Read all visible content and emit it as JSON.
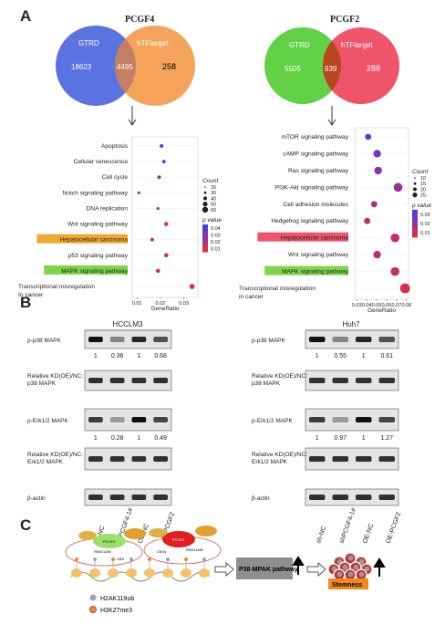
{
  "panels": {
    "a": "A",
    "b": "B",
    "c": "C"
  },
  "venn_left": {
    "title": "PCGF4",
    "left_label": "GTRD",
    "right_label": "hTFtarget",
    "left_value": "18623",
    "overlap_value": "4495",
    "right_value": "258",
    "left_color": "#5b73e0",
    "right_color": "#f5a35a",
    "overlap_color": "#c47e62"
  },
  "venn_right": {
    "title": "PCGF2",
    "left_label": "GTRD",
    "right_label": "hTFtarget",
    "left_value": "5505",
    "overlap_value": "939",
    "right_value": "288",
    "left_color": "#62d145",
    "right_color": "#f0546b",
    "overlap_color": "#b8461e"
  },
  "chart_data": [
    {
      "type": "scatter",
      "xlabel": "GeneRatio",
      "x_ticks": [
        "0.01",
        "0.02",
        "0.03"
      ],
      "categories": [
        "Apoptosis",
        "Cellular senescence",
        "Cell cycle",
        "Notch signaling pathway",
        "DNA replication",
        "Wnt signaling pathway",
        "Hepatocellular carcinoma",
        "p53 signaling pathway",
        "MAPK signaling pathway",
        "Transcriptional misregulation In cancer"
      ],
      "x": [
        0.0205,
        0.0215,
        0.0195,
        0.0108,
        0.019,
        0.0225,
        0.0165,
        0.0225,
        0.019,
        0.0335
      ],
      "count": [
        30,
        30,
        30,
        20,
        20,
        40,
        30,
        40,
        40,
        60
      ],
      "pvalue": [
        0.04,
        0.03,
        0.025,
        0.02,
        0.02,
        0.01,
        0.015,
        0.01,
        0.012,
        0.005
      ],
      "highlight": {
        "Hepatocellular carcinoma": "#f0a830",
        "MAPK signaling pathway": "#7bd64a"
      },
      "legend": {
        "count_title": "Count",
        "count_values": [
          "20",
          "30",
          "40",
          "50",
          "60"
        ],
        "p_title": "p value",
        "p_values": [
          "0.04",
          "0.03",
          "0.02",
          "0.01"
        ]
      }
    },
    {
      "type": "scatter",
      "xlabel": "GeneRatio",
      "x_ticks": [
        "0.03",
        "0.04",
        "0.05",
        "0.06",
        "0.07",
        "0.08"
      ],
      "categories": [
        "mTOR signaling pathway",
        "cAMP signaling pathway",
        "Ras signaling pathway",
        "PI3K-Akt signaling pathway",
        "Cell adhesion molecules",
        "Hedgehog signaling pathway",
        "Hepatocellular carcinoma",
        "Wnt signaling pathway",
        "MAPK signaling pathway",
        "Transcriptional misregulation in cancer"
      ],
      "x": [
        0.0415,
        0.0505,
        0.0515,
        0.0715,
        0.0475,
        0.0405,
        0.0685,
        0.0505,
        0.0685,
        0.0785
      ],
      "count": [
        10,
        15,
        15,
        20,
        10,
        10,
        20,
        15,
        20,
        25
      ],
      "pvalue": [
        0.03,
        0.025,
        0.022,
        0.02,
        0.015,
        0.012,
        0.01,
        0.012,
        0.01,
        0.005
      ],
      "highlight": {
        "Hepatocellular carcinoma": "#f0546b",
        "MAPK signaling pathway": "#7bd64a"
      },
      "legend": {
        "count_title": "Count",
        "count_values": [
          "10",
          "15",
          "20",
          "25"
        ],
        "p_title": "p value",
        "p_values": [
          "0.03",
          "0.02",
          "0.01"
        ]
      }
    }
  ],
  "blot_left": {
    "cell_line": "HCCLM3",
    "rows": [
      {
        "label": "p-p38 MAPK",
        "values": [
          "1",
          "0.36",
          "1",
          "0.68"
        ]
      },
      {
        "label": "Relative KD(OE)/NC:\np38 MAPK",
        "values": []
      },
      {
        "label": "p-Erk1/2 MAPK",
        "values": [
          "1",
          "0.28",
          "1",
          "0.49"
        ]
      },
      {
        "label": "Relative KD(OE)/NC:\nErk1/2 MAPK",
        "values": []
      },
      {
        "label": "β-actin",
        "values": []
      }
    ],
    "lanes": [
      "sh-NC",
      "shPCGF4-1#",
      "OE-NC",
      "OE-PCGF2"
    ]
  },
  "blot_right": {
    "cell_line": "Huh7",
    "rows": [
      {
        "label": "p-p38 MAPK",
        "values": [
          "1",
          "0.55",
          "1",
          "0.61"
        ]
      },
      {
        "label": "Relative KD(OE)/NC:\np38 MAPK",
        "values": []
      },
      {
        "label": "p-Erk1/2 MAPK",
        "values": [
          "1",
          "0.97",
          "1",
          "1.27"
        ]
      },
      {
        "label": "Relative KD(OE)/NC:\nErk1/2 MAPK",
        "values": []
      },
      {
        "label": "β-actin",
        "values": []
      }
    ],
    "lanes": [
      "sh-NC",
      "shPCGF4-1#",
      "OE-NC",
      "OE-PCGF2"
    ]
  },
  "panel_c": {
    "prc1_left": {
      "pcgf": "PCGF2",
      "ring": "RING1A/B",
      "cbx": "CBX"
    },
    "prc1_right": {
      "pcgf": "PCGF4",
      "ring": "RING1A/B",
      "cbx": "CBXs"
    },
    "pathway": "P38-MPAK pathway",
    "stemness": "Stemness",
    "legend_h2a": "H2AK119ub",
    "legend_h3": "H3K27me3"
  }
}
